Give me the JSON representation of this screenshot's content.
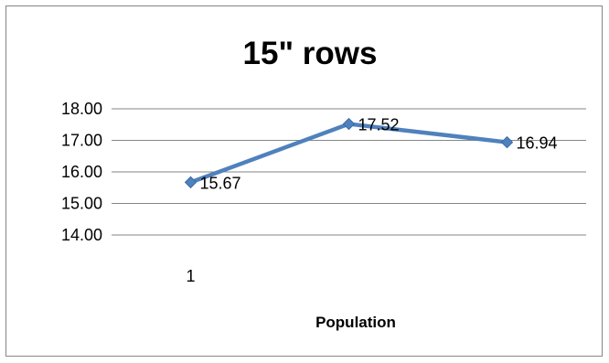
{
  "chart_data": {
    "type": "line",
    "title": "15\" rows",
    "xlabel": "Population",
    "ylabel": "",
    "categories": [
      "1",
      "",
      ""
    ],
    "series": [
      {
        "values": [
          15.67,
          17.52,
          16.94
        ],
        "color": "#4F81BD"
      }
    ],
    "data_labels": [
      "15.67",
      "17.52",
      "16.94"
    ],
    "ylim": [
      14,
      18
    ],
    "yticks": [
      "14.00",
      "15.00",
      "16.00",
      "17.00",
      "18.00"
    ],
    "grid": true,
    "legend": "none",
    "marker": "diamond",
    "colors": {
      "line": "#4F81BD",
      "marker": "#4F81BD",
      "gridline": "#868686",
      "border": "#868686"
    }
  }
}
